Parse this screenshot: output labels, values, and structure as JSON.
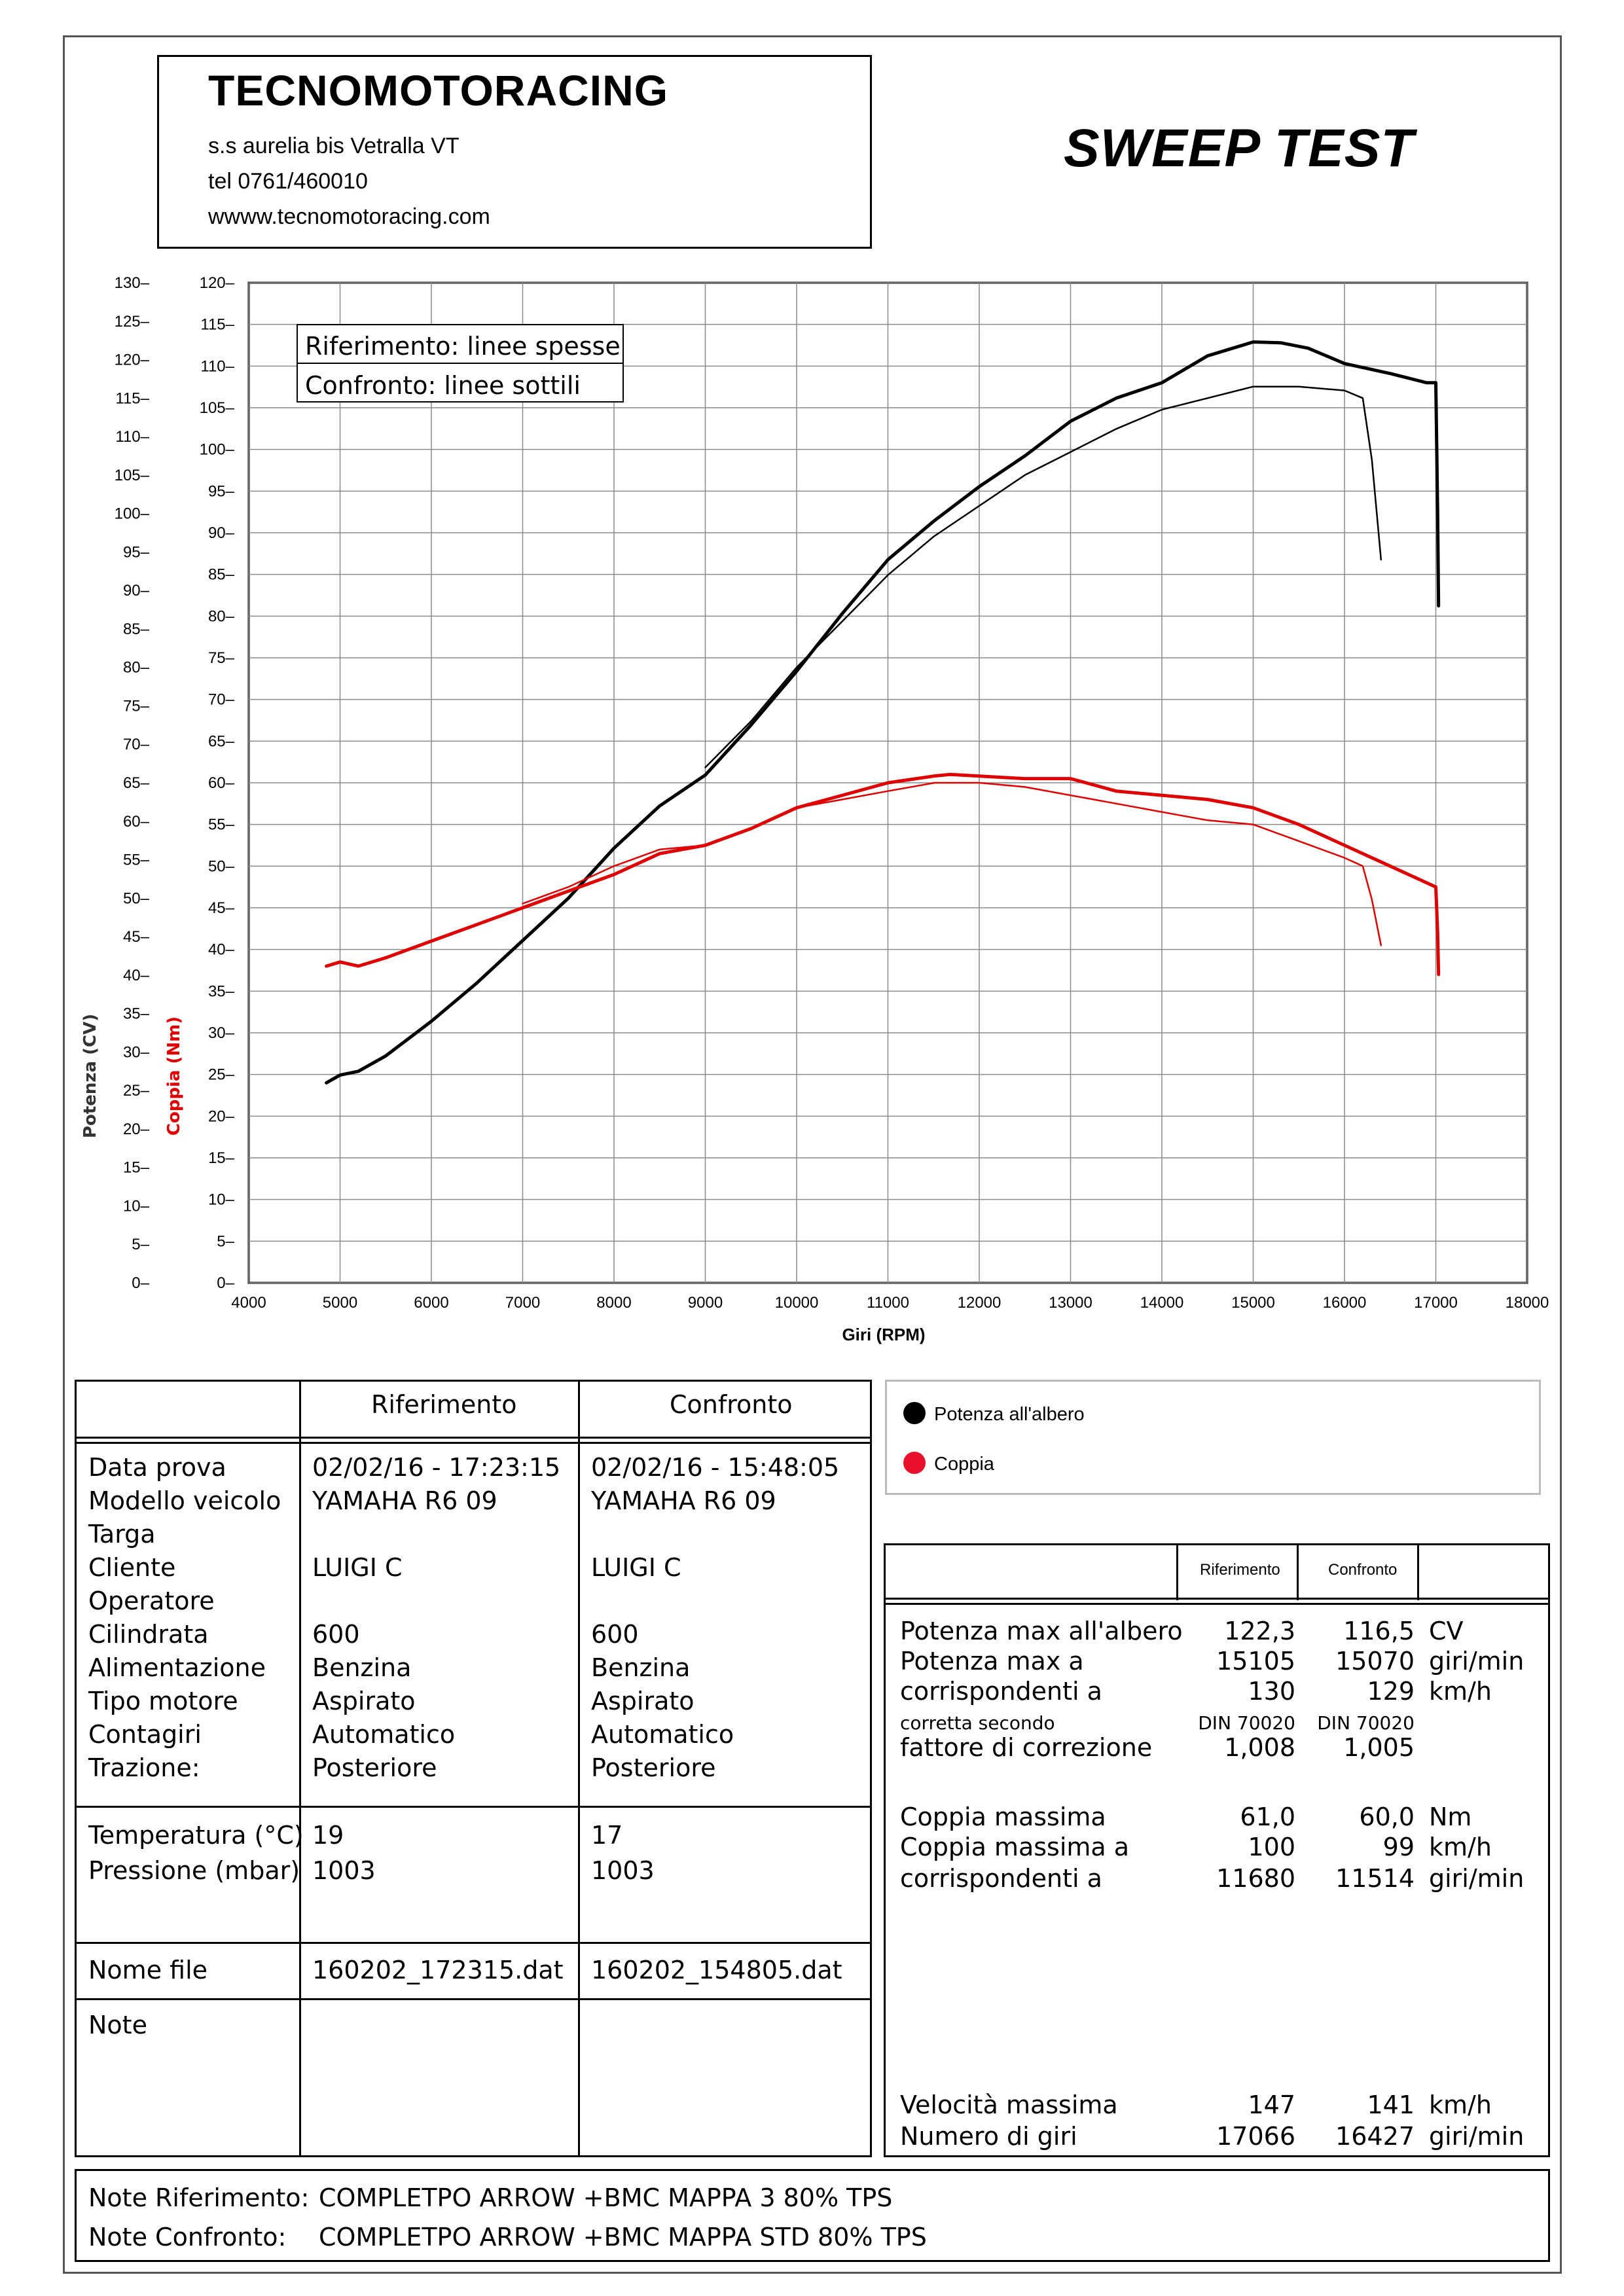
{
  "header": {
    "company": "TECNOMOTORACING",
    "address": "s.s aurelia bis  Vetralla  VT",
    "phone": "tel 0761/460010",
    "website": "wwww.tecnomotoracing.com",
    "test_title": "SWEEP TEST"
  },
  "chart_data": {
    "type": "line",
    "xlabel": "Giri (RPM)",
    "ylabel_left": "Potenza (CV)",
    "ylabel_right": "Coppia (Nm)",
    "xlim": [
      4000,
      18000
    ],
    "x_ticks": [
      4000,
      5000,
      6000,
      7000,
      8000,
      9000,
      10000,
      11000,
      12000,
      13000,
      14000,
      15000,
      16000,
      17000,
      18000
    ],
    "ylim_power": [
      0,
      130
    ],
    "y_ticks_power": [
      0,
      5,
      10,
      15,
      20,
      25,
      30,
      35,
      40,
      45,
      50,
      55,
      60,
      65,
      70,
      75,
      80,
      85,
      90,
      95,
      100,
      105,
      110,
      115,
      120,
      125,
      130
    ],
    "ylim_torque": [
      0,
      120
    ],
    "y_ticks_torque": [
      0,
      5,
      10,
      15,
      20,
      25,
      30,
      35,
      40,
      45,
      50,
      55,
      60,
      65,
      70,
      75,
      80,
      85,
      90,
      95,
      100,
      105,
      110,
      115,
      120
    ],
    "grid": true,
    "legend_box": [
      "Riferimento: linee spesse",
      "Confronto: linee sottili"
    ],
    "series": [
      {
        "axis": "power",
        "style": "thick",
        "color": "#000000",
        "x": [
          4850,
          5000,
          5200,
          5500,
          6000,
          6500,
          7000,
          7500,
          8000,
          8500,
          9000,
          9500,
          10000,
          10500,
          11000,
          11500,
          12000,
          12500,
          13000,
          13500,
          14000,
          14500,
          15000,
          15300,
          15600,
          16000,
          16500,
          16900,
          17000,
          17020,
          17030
        ],
        "y": [
          26,
          27,
          27.5,
          29.5,
          34,
          39,
          44.5,
          50,
          56.5,
          62,
          66,
          72.5,
          79.5,
          87,
          94,
          99,
          103.5,
          107.5,
          112,
          115,
          117,
          120.5,
          122.3,
          122.2,
          121.5,
          119.5,
          118.2,
          117,
          117,
          100,
          88
        ]
      },
      {
        "axis": "power",
        "style": "thin",
        "color": "#000000",
        "x": [
          9000,
          9500,
          10000,
          10500,
          11000,
          11500,
          12000,
          12500,
          13000,
          13500,
          14000,
          14500,
          15000,
          15500,
          16000,
          16200,
          16300,
          16400
        ],
        "y": [
          67,
          73,
          80,
          86,
          92,
          97,
          101,
          105,
          108,
          111,
          113.5,
          115,
          116.5,
          116.5,
          116,
          115,
          107,
          94
        ]
      },
      {
        "axis": "torque",
        "style": "thick",
        "color": "#e00000",
        "x": [
          4850,
          5000,
          5200,
          5500,
          6000,
          6500,
          7000,
          7500,
          8000,
          8500,
          9000,
          9500,
          10000,
          10500,
          11000,
          11500,
          11680,
          12000,
          12500,
          13000,
          13500,
          14000,
          14500,
          15000,
          15500,
          16000,
          16500,
          16900,
          17000,
          17020,
          17030
        ],
        "y": [
          38,
          38.5,
          38,
          39,
          41,
          43,
          45,
          47,
          49,
          51.5,
          52.5,
          54.5,
          57,
          58.5,
          60,
          60.8,
          61,
          60.8,
          60.5,
          60.5,
          59,
          58.5,
          58,
          57,
          55,
          52.5,
          50,
          48,
          47.5,
          42,
          37
        ]
      },
      {
        "axis": "torque",
        "style": "thin",
        "color": "#e00000",
        "x": [
          7000,
          7500,
          8000,
          8500,
          9000,
          9500,
          10000,
          10500,
          11000,
          11514,
          12000,
          12500,
          13000,
          13500,
          14000,
          14500,
          15000,
          15500,
          16000,
          16200,
          16300,
          16400
        ],
        "y": [
          45.5,
          47.5,
          50,
          52,
          52.5,
          54.5,
          57,
          58,
          59,
          60,
          60,
          59.5,
          58.5,
          57.5,
          56.5,
          55.5,
          55,
          53,
          51,
          50,
          46,
          40.5
        ]
      }
    ]
  },
  "legend": {
    "power_label": "Potenza all'albero",
    "torque_label": "Coppia"
  },
  "table1": {
    "col_headers": [
      "Riferimento",
      "Confronto"
    ],
    "rows_a": [
      {
        "label": "Data prova",
        "ref": "02/02/16 - 17:23:15",
        "cmp": "02/02/16 - 15:48:05"
      },
      {
        "label": "Modello veicolo",
        "ref": "YAMAHA R6 09",
        "cmp": "YAMAHA R6 09"
      },
      {
        "label": "Targa",
        "ref": "",
        "cmp": ""
      },
      {
        "label": "Cliente",
        "ref": "LUIGI C",
        "cmp": "LUIGI C"
      },
      {
        "label": "Operatore",
        "ref": "",
        "cmp": ""
      },
      {
        "label": "Cilindrata",
        "ref": "600",
        "cmp": "600"
      },
      {
        "label": "Alimentazione",
        "ref": "Benzina",
        "cmp": "Benzina"
      },
      {
        "label": "Tipo motore",
        "ref": "Aspirato",
        "cmp": "Aspirato"
      },
      {
        "label": "Contagiri",
        "ref": "Automatico",
        "cmp": "Automatico"
      },
      {
        "label": "Trazione:",
        "ref": "Posteriore",
        "cmp": "Posteriore"
      }
    ],
    "rows_b": [
      {
        "label": "Temperatura (°C)",
        "ref": "19",
        "cmp": "17"
      },
      {
        "label": "Pressione (mbar)",
        "ref": "1003",
        "cmp": "1003"
      }
    ],
    "file_label": "Nome file",
    "file_ref": "160202_172315.dat",
    "file_cmp": "160202_154805.dat",
    "note_label": "Note"
  },
  "table2": {
    "col_headers": [
      "Riferimento",
      "Confronto"
    ],
    "rows": [
      {
        "label": "Potenza max all'albero",
        "ref": "122,3",
        "cmp": "116,5",
        "unit": "CV"
      },
      {
        "label": "Potenza max a",
        "ref": "15105",
        "cmp": "15070",
        "unit": "giri/min"
      },
      {
        "label": "corrispondenti a",
        "ref": "130",
        "cmp": "129",
        "unit": "km/h"
      },
      {
        "label": "corretta secondo",
        "ref": "DIN 70020",
        "cmp": "DIN 70020",
        "unit": "",
        "small": true
      },
      {
        "label": "fattore di correzione",
        "ref": "1,008",
        "cmp": "1,005",
        "unit": ""
      },
      {
        "label": "Coppia massima",
        "ref": "61,0",
        "cmp": "60,0",
        "unit": "Nm"
      },
      {
        "label": "Coppia massima a",
        "ref": "100",
        "cmp": "99",
        "unit": "km/h"
      },
      {
        "label": "corrispondenti a",
        "ref": "11680",
        "cmp": "11514",
        "unit": "giri/min"
      },
      {
        "label": "Velocità massima",
        "ref": "147",
        "cmp": "141",
        "unit": "km/h"
      },
      {
        "label": "Numero di giri",
        "ref": "17066",
        "cmp": "16427",
        "unit": "giri/min"
      }
    ]
  },
  "notes": {
    "ref_label": "Note Riferimento:",
    "ref_text": "COMPLETPO ARROW +BMC MAPPA 3 80% TPS",
    "cmp_label": "Note Confronto:",
    "cmp_text": "COMPLETPO ARROW +BMC MAPPA STD 80% TPS"
  }
}
